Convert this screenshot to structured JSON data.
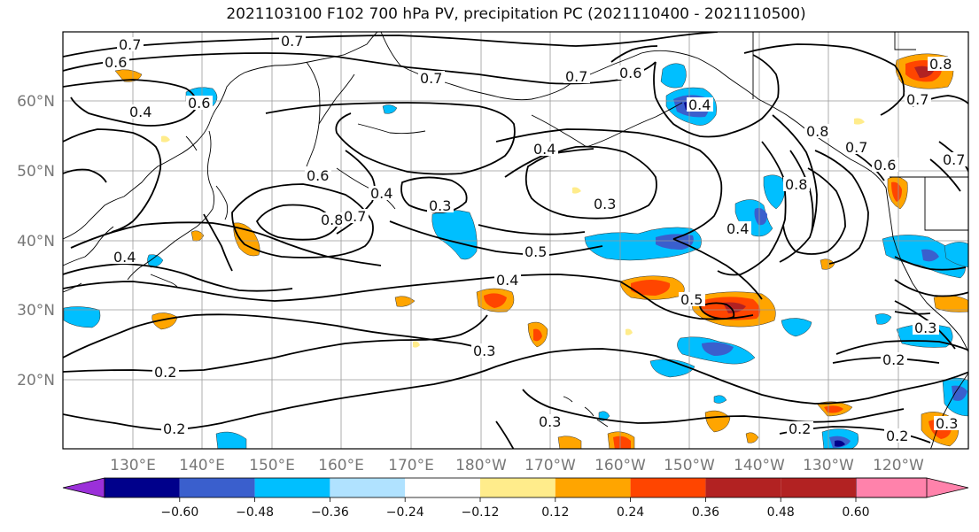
{
  "title": "2021103100 F102 700 hPa PV, precipitation PC (2021110400 - 2021110500)",
  "lat_labels": [
    "60°N",
    "50°N",
    "40°N",
    "30°N",
    "20°N"
  ],
  "lon_labels": [
    "130°E",
    "140°E",
    "150°E",
    "160°E",
    "170°E",
    "180°W",
    "170°W",
    "160°W",
    "150°W",
    "140°W",
    "130°W",
    "120°W"
  ],
  "colorbar": {
    "colors": [
      "#9b30d9",
      "#00008b",
      "#3a5fcd",
      "#00bfff",
      "#b0e2ff",
      "#ffffff",
      "#ffec8b",
      "#ffa500",
      "#ff4500",
      "#b22222",
      "#ff82ab"
    ],
    "tick_labels": [
      "−0.60",
      "−0.48",
      "−0.36",
      "−0.24",
      "−0.12",
      "0.12",
      "0.24",
      "0.36",
      "0.48",
      "0.60"
    ]
  },
  "contour_labels": [
    {
      "text": "0.7"
    },
    {
      "text": "0.7"
    },
    {
      "text": "0.6"
    },
    {
      "text": "0.4"
    },
    {
      "text": "0.6"
    },
    {
      "text": "0.7"
    },
    {
      "text": "0.7"
    },
    {
      "text": "0.6"
    },
    {
      "text": "0.4"
    },
    {
      "text": "0.8"
    },
    {
      "text": "0.7"
    },
    {
      "text": "0.6"
    },
    {
      "text": "0.8"
    },
    {
      "text": "0.7"
    },
    {
      "text": "0.4"
    },
    {
      "text": "0.4"
    },
    {
      "text": "0.3"
    },
    {
      "text": "0.3"
    },
    {
      "text": "0.4"
    },
    {
      "text": "0.5"
    },
    {
      "text": "0.4"
    },
    {
      "text": "0.5"
    },
    {
      "text": "0.3"
    },
    {
      "text": "0.2"
    },
    {
      "text": "0.2"
    },
    {
      "text": "0.3"
    },
    {
      "text": "0.2"
    },
    {
      "text": "0.2"
    },
    {
      "text": "0.2"
    },
    {
      "text": "0.3"
    },
    {
      "text": "0.3"
    },
    {
      "text": "0.6"
    },
    {
      "text": "0.8"
    },
    {
      "text": "0.4"
    },
    {
      "text": "0.8"
    },
    {
      "text": "0.7"
    },
    {
      "text": "0.7"
    }
  ]
}
